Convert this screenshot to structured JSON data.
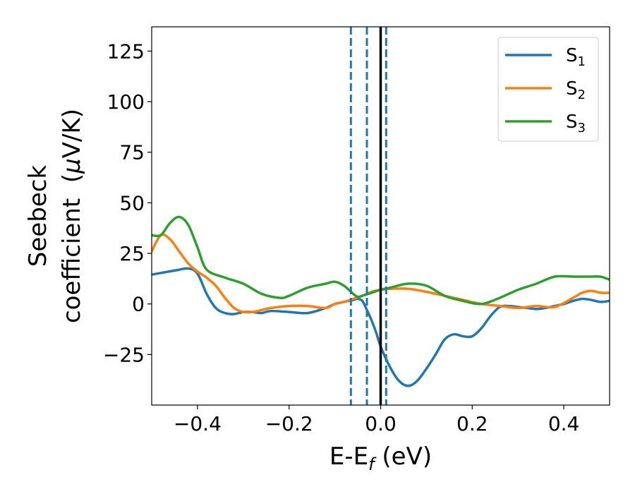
{
  "chart_data": {
    "type": "line",
    "xlabel": "E-E",
    "xlabel_sub": "f",
    "xlabel_unit": " (eV)",
    "ylabel_line1": "Seebeck",
    "ylabel_line2_pre": "coefficient  (",
    "ylabel_mu": "μ",
    "ylabel_line2_post": "V/K)",
    "xlim": [
      -0.5,
      0.5
    ],
    "ylim": [
      -50,
      137
    ],
    "xticks": [
      -0.4,
      -0.2,
      0.0,
      0.2,
      0.4
    ],
    "xtick_labels": [
      "−0.4",
      "−0.2",
      "0.0",
      "0.2",
      "0.4"
    ],
    "yticks": [
      -25,
      0,
      25,
      50,
      75,
      100,
      125
    ],
    "ytick_labels": [
      "−25",
      "0",
      "25",
      "50",
      "75",
      "100",
      "125"
    ],
    "grid": false,
    "legend_position": "top-right",
    "series": [
      {
        "name": "S",
        "sub": "1",
        "color": "#1f77b4",
        "x": [
          -0.5,
          -0.45,
          -0.42,
          -0.4,
          -0.38,
          -0.36,
          -0.34,
          -0.32,
          -0.3,
          -0.28,
          -0.26,
          -0.24,
          -0.2,
          -0.16,
          -0.12,
          -0.1,
          -0.08,
          -0.06,
          -0.05,
          -0.04,
          -0.03,
          -0.02,
          -0.01,
          0.0,
          0.02,
          0.04,
          0.06,
          0.08,
          0.1,
          0.12,
          0.14,
          0.16,
          0.18,
          0.2,
          0.22,
          0.24,
          0.26,
          0.28,
          0.3,
          0.32,
          0.34,
          0.36,
          0.38,
          0.4,
          0.42,
          0.44,
          0.46,
          0.48,
          0.5
        ],
        "y": [
          14.5,
          16.5,
          17.5,
          15,
          5,
          -2,
          -4.5,
          -5,
          -4,
          -4,
          -4.5,
          -3.5,
          -4,
          -4.5,
          -2,
          0,
          1,
          2,
          2.5,
          1.5,
          -3,
          -8,
          -14,
          -21,
          -31,
          -38,
          -40.5,
          -38,
          -32,
          -25,
          -17.5,
          -15,
          -16,
          -16,
          -12,
          -6,
          -1.5,
          -1,
          -1.5,
          -2,
          -2.5,
          -2,
          -1,
          0,
          1.5,
          2.5,
          2,
          1,
          1.5
        ]
      },
      {
        "name": "S",
        "sub": "2",
        "color": "#ff7f0e",
        "x": [
          -0.5,
          -0.48,
          -0.46,
          -0.44,
          -0.42,
          -0.4,
          -0.38,
          -0.36,
          -0.34,
          -0.32,
          -0.3,
          -0.28,
          -0.26,
          -0.24,
          -0.2,
          -0.16,
          -0.12,
          -0.1,
          -0.08,
          -0.06,
          -0.04,
          -0.02,
          0.0,
          0.02,
          0.06,
          0.1,
          0.14,
          0.18,
          0.22,
          0.26,
          0.3,
          0.34,
          0.38,
          0.42,
          0.44,
          0.46,
          0.48,
          0.5
        ],
        "y": [
          26,
          34,
          32,
          26,
          20,
          16,
          13,
          9,
          3,
          -2,
          -4,
          -4,
          -3,
          -2,
          -1,
          -1,
          -2,
          0,
          1,
          2.5,
          4,
          6,
          7,
          7.5,
          7.5,
          6,
          4,
          2,
          0,
          -1,
          -2,
          -1,
          -1.5,
          3,
          5.5,
          6.5,
          5.5,
          5.5
        ]
      },
      {
        "name": "S",
        "sub": "3",
        "color": "#2ca02c",
        "x": [
          -0.5,
          -0.48,
          -0.46,
          -0.44,
          -0.42,
          -0.4,
          -0.38,
          -0.34,
          -0.3,
          -0.26,
          -0.22,
          -0.2,
          -0.16,
          -0.12,
          -0.1,
          -0.08,
          -0.06,
          -0.05,
          -0.04,
          -0.02,
          0.0,
          0.02,
          0.06,
          0.1,
          0.14,
          0.18,
          0.22,
          0.26,
          0.3,
          0.34,
          0.38,
          0.42,
          0.44,
          0.46,
          0.48,
          0.5
        ],
        "y": [
          34,
          34,
          40,
          43,
          39,
          28,
          17,
          13,
          10,
          5,
          3,
          4,
          8,
          10,
          11,
          9,
          5,
          3.5,
          4,
          5.5,
          7,
          8,
          10,
          9,
          4,
          1.5,
          0,
          3,
          7,
          10,
          13.5,
          13.5,
          13.5,
          13.5,
          13.5,
          12
        ]
      }
    ],
    "vlines": [
      {
        "x": -0.065,
        "style": "dashed",
        "color": "#1f77b4"
      },
      {
        "x": -0.03,
        "style": "dashed",
        "color": "#1f77b4"
      },
      {
        "x": 0.012,
        "style": "dashed",
        "color": "#1f77b4"
      },
      {
        "x": 0.0,
        "style": "solid",
        "color": "#000000"
      }
    ]
  }
}
